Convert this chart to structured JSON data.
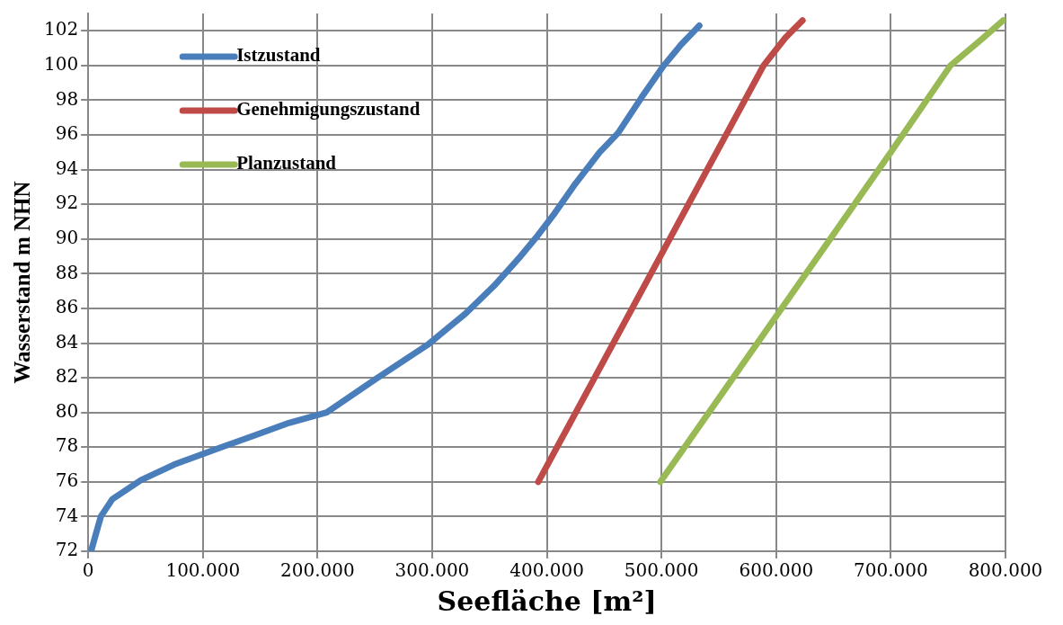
{
  "chart_data": {
    "type": "line",
    "xlabel": "Seefläche [m²]",
    "ylabel": "Wasserstand m NHN",
    "xlim": [
      0,
      800000
    ],
    "ylim": [
      72,
      103
    ],
    "xticks": [
      {
        "value": 0,
        "label": "0"
      },
      {
        "value": 100000,
        "label": "100.000"
      },
      {
        "value": 200000,
        "label": "200.000"
      },
      {
        "value": 300000,
        "label": "300.000"
      },
      {
        "value": 400000,
        "label": "400.000"
      },
      {
        "value": 500000,
        "label": "500.000"
      },
      {
        "value": 600000,
        "label": "600.000"
      },
      {
        "value": 700000,
        "label": "700.000"
      },
      {
        "value": 800000,
        "label": "800.000"
      }
    ],
    "yticks": [
      72,
      74,
      76,
      78,
      80,
      82,
      84,
      86,
      88,
      90,
      92,
      94,
      96,
      98,
      100,
      102
    ],
    "grid": true,
    "legend": "top left",
    "marker": "none",
    "line_style": "solid",
    "series": [
      {
        "name": "Istzustand",
        "color": "#4a7ebb",
        "x": [
          2500,
          6700,
          11000,
          21000,
          46000,
          75000,
          112000,
          146000,
          175000,
          208000,
          250000,
          296000,
          329000,
          354000,
          377000,
          392000,
          407000,
          425000,
          446000,
          462000,
          483000,
          502000,
          517000,
          533000
        ],
        "values": [
          72,
          73,
          74,
          75,
          76.1,
          77,
          77.9,
          78.7,
          79.4,
          80,
          81.9,
          83.9,
          85.7,
          87.3,
          89,
          90.2,
          91.5,
          93.2,
          95,
          96.1,
          98.2,
          100,
          101.2,
          102.3
        ]
      },
      {
        "name": "Genehmigungszustand",
        "color": "#be4b48",
        "x": [
          392500,
          589000,
          608000,
          623000
        ],
        "values": [
          76,
          100,
          101.6,
          102.6
        ]
      },
      {
        "name": "Planzustand",
        "color": "#98b954",
        "x": [
          499000,
          700000,
          752000,
          779000,
          798000
        ],
        "values": [
          76,
          95,
          100,
          101.5,
          102.6
        ]
      }
    ]
  }
}
